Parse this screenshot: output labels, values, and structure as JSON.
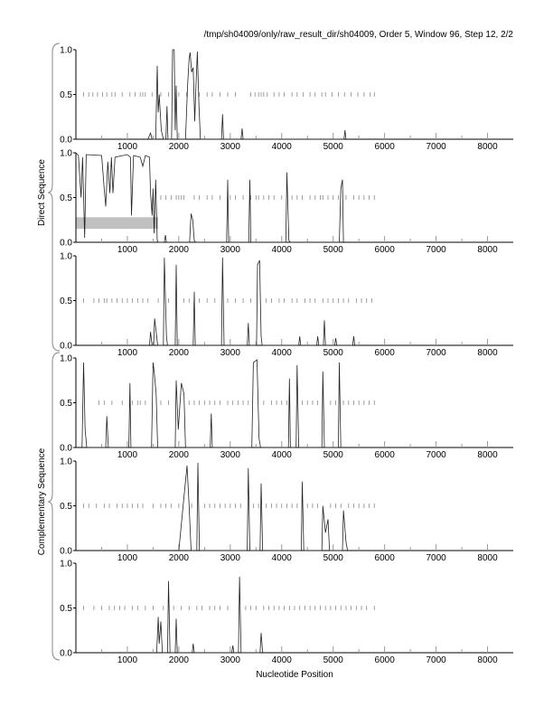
{
  "chart_data": {
    "type": "line",
    "title": "/tmp/sh04009/only/raw_result_dir/sh04009, Order 5, Window 96, Step 12, 2/2",
    "xlabel": "Nucleotide Position",
    "group_labels": [
      "Direct Sequence",
      "Complementary Sequence"
    ],
    "xlim": [
      0,
      8500
    ],
    "ylim": [
      0,
      1
    ],
    "x_ticks": [
      "1000",
      "2000",
      "3000",
      "4000",
      "5000",
      "6000",
      "7000",
      "8000"
    ],
    "y_ticks": [
      "0.0",
      "0.5",
      "1.0"
    ],
    "panels": [
      {
        "name": "direct-frame-1",
        "points": [
          [
            1400,
            0
          ],
          [
            1450,
            0.07
          ],
          [
            1480,
            0
          ],
          [
            1550,
            0
          ],
          [
            1580,
            0.82
          ],
          [
            1600,
            0.3
          ],
          [
            1620,
            0.5
          ],
          [
            1660,
            0.1
          ],
          [
            1700,
            0
          ],
          [
            1750,
            0
          ],
          [
            1770,
            0.37
          ],
          [
            1790,
            0
          ],
          [
            1860,
            0
          ],
          [
            1880,
            1.0
          ],
          [
            1910,
            1.0
          ],
          [
            1930,
            0.1
          ],
          [
            1950,
            0.6
          ],
          [
            1970,
            0
          ],
          [
            2130,
            0
          ],
          [
            2170,
            0.6
          ],
          [
            2200,
            0.9
          ],
          [
            2220,
            0.97
          ],
          [
            2250,
            0.75
          ],
          [
            2280,
            0.8
          ],
          [
            2310,
            0.2
          ],
          [
            2330,
            0.55
          ],
          [
            2360,
            0.98
          ],
          [
            2390,
            0.4
          ],
          [
            2420,
            0
          ],
          [
            2830,
            0
          ],
          [
            2850,
            0.28
          ],
          [
            2870,
            0
          ],
          [
            3210,
            0
          ],
          [
            3230,
            0.12
          ],
          [
            3250,
            0
          ],
          [
            5210,
            0
          ],
          [
            5230,
            0.1
          ],
          [
            5250,
            0
          ]
        ],
        "markers": [
          150,
          250,
          330,
          420,
          520,
          600,
          700,
          760,
          900,
          1050,
          1150,
          1250,
          1300,
          1350,
          1480,
          1650,
          1800,
          2000,
          2150,
          2400,
          2550,
          2650,
          2800,
          2950,
          3100,
          3400,
          3480,
          3550,
          3600,
          3650,
          3720,
          3850,
          3950,
          4050,
          4200,
          4300,
          4420,
          4550,
          4650,
          4780,
          4850,
          4980,
          5100,
          5220,
          5350,
          5480,
          5600,
          5720,
          5800
        ]
      },
      {
        "name": "direct-frame-2",
        "band": [
          0,
          1600,
          0.15,
          0.28
        ],
        "points": [
          [
            0,
            1.0
          ],
          [
            50,
            0.97
          ],
          [
            100,
            0.5
          ],
          [
            130,
            0.95
          ],
          [
            170,
            0.05
          ],
          [
            200,
            0.98
          ],
          [
            500,
            0.97
          ],
          [
            550,
            0.6
          ],
          [
            580,
            0.4
          ],
          [
            620,
            0.9
          ],
          [
            660,
            0.55
          ],
          [
            690,
            0.95
          ],
          [
            720,
            0.55
          ],
          [
            760,
            0.95
          ],
          [
            1000,
            0.98
          ],
          [
            1060,
            0.95
          ],
          [
            1080,
            0.3
          ],
          [
            1120,
            0.97
          ],
          [
            1250,
            0.95
          ],
          [
            1300,
            0.85
          ],
          [
            1350,
            0.97
          ],
          [
            1430,
            0.95
          ],
          [
            1450,
            0.55
          ],
          [
            1480,
            0.3
          ],
          [
            1500,
            0.6
          ],
          [
            1520,
            0.1
          ],
          [
            1550,
            0.7
          ],
          [
            1580,
            0.02
          ],
          [
            1600,
            0
          ],
          [
            1720,
            0
          ],
          [
            1740,
            0.08
          ],
          [
            1760,
            0
          ],
          [
            2210,
            0
          ],
          [
            2240,
            0.32
          ],
          [
            2270,
            0.25
          ],
          [
            2300,
            0.02
          ],
          [
            2330,
            0
          ],
          [
            2930,
            0
          ],
          [
            2950,
            0.7
          ],
          [
            2970,
            0
          ],
          [
            3360,
            0
          ],
          [
            3380,
            0.7
          ],
          [
            3400,
            0
          ],
          [
            4080,
            0
          ],
          [
            4100,
            0.78
          ],
          [
            4140,
            0.02
          ],
          [
            4170,
            0
          ],
          [
            5120,
            0
          ],
          [
            5150,
            0.6
          ],
          [
            5180,
            0.7
          ],
          [
            5200,
            0
          ]
        ],
        "markers": [
          1650,
          1750,
          1850,
          1950,
          2000,
          2050,
          2100,
          2300,
          2400,
          2550,
          2650,
          2800,
          3000,
          3100,
          3250,
          3400,
          3500,
          3550,
          3650,
          3750,
          3850,
          4000,
          4200,
          4300,
          4400,
          4550,
          4650,
          4750,
          4800,
          4900,
          5000,
          5100,
          5250,
          5400,
          5500,
          5600,
          5700,
          5800
        ]
      },
      {
        "name": "direct-frame-3",
        "points": [
          [
            1430,
            0
          ],
          [
            1450,
            0.15
          ],
          [
            1480,
            0
          ],
          [
            1510,
            0
          ],
          [
            1530,
            0.3
          ],
          [
            1560,
            0.15
          ],
          [
            1590,
            0
          ],
          [
            1700,
            0
          ],
          [
            1720,
            0.98
          ],
          [
            1760,
            0.1
          ],
          [
            1780,
            0
          ],
          [
            1930,
            0
          ],
          [
            1950,
            0.9
          ],
          [
            1970,
            0
          ],
          [
            2280,
            0
          ],
          [
            2300,
            0.6
          ],
          [
            2320,
            0
          ],
          [
            2830,
            0
          ],
          [
            2850,
            0.98
          ],
          [
            2880,
            0
          ],
          [
            3330,
            0
          ],
          [
            3350,
            0.25
          ],
          [
            3370,
            0
          ],
          [
            3510,
            0
          ],
          [
            3530,
            0.9
          ],
          [
            3570,
            0.95
          ],
          [
            3600,
            0.1
          ],
          [
            3620,
            0
          ],
          [
            4330,
            0
          ],
          [
            4350,
            0.1
          ],
          [
            4370,
            0
          ],
          [
            4680,
            0
          ],
          [
            4700,
            0.1
          ],
          [
            4720,
            0
          ],
          [
            4810,
            0
          ],
          [
            4830,
            0.28
          ],
          [
            4850,
            0
          ],
          [
            5030,
            0
          ],
          [
            5050,
            0.08
          ],
          [
            5070,
            0
          ],
          [
            5380,
            0
          ],
          [
            5400,
            0.1
          ],
          [
            5420,
            0
          ]
        ],
        "markers": [
          150,
          350,
          450,
          550,
          600,
          700,
          800,
          900,
          1000,
          1100,
          1200,
          1300,
          1400,
          1600,
          1800,
          2100,
          2200,
          2400,
          2550,
          2700,
          2950,
          3100,
          3250,
          3400,
          3700,
          3800,
          3950,
          4050,
          4200,
          4300,
          4450,
          4550,
          4650,
          4800,
          4900,
          5000,
          5100,
          5200,
          5300,
          5450,
          5550,
          5650,
          5750
        ]
      },
      {
        "name": "complementary-frame-1",
        "points": [
          [
            120,
            0
          ],
          [
            150,
            0.95
          ],
          [
            180,
            0.2
          ],
          [
            210,
            0
          ],
          [
            580,
            0
          ],
          [
            600,
            0.35
          ],
          [
            630,
            0
          ],
          [
            1030,
            0
          ],
          [
            1050,
            0.72
          ],
          [
            1070,
            0
          ],
          [
            1470,
            0
          ],
          [
            1500,
            0.95
          ],
          [
            1520,
            0.85
          ],
          [
            1560,
            0.6
          ],
          [
            1590,
            0
          ],
          [
            1930,
            0
          ],
          [
            1950,
            0.75
          ],
          [
            1990,
            0.2
          ],
          [
            2050,
            0.72
          ],
          [
            2100,
            0.6
          ],
          [
            2130,
            0
          ],
          [
            2610,
            0
          ],
          [
            2630,
            0.38
          ],
          [
            2650,
            0
          ],
          [
            3420,
            0
          ],
          [
            3450,
            0.95
          ],
          [
            3520,
            0.98
          ],
          [
            3560,
            0.1
          ],
          [
            3590,
            0
          ],
          [
            4130,
            0
          ],
          [
            4150,
            0.77
          ],
          [
            4170,
            0
          ],
          [
            4280,
            0
          ],
          [
            4300,
            0.92
          ],
          [
            4330,
            0
          ],
          [
            4780,
            0
          ],
          [
            4800,
            0.85
          ],
          [
            4830,
            0
          ],
          [
            5100,
            0
          ],
          [
            5120,
            0.95
          ],
          [
            5150,
            0
          ]
        ],
        "markers": [
          450,
          550,
          700,
          900,
          1100,
          1200,
          1250,
          1350,
          1650,
          1800,
          2200,
          2300,
          2400,
          2500,
          2600,
          2700,
          2800,
          2950,
          3050,
          3150,
          3250,
          3350,
          3650,
          3800,
          3900,
          4000,
          4100,
          4400,
          4500,
          4600,
          4700,
          4950,
          5050,
          5200,
          5300,
          5400,
          5500,
          5600,
          5700,
          5800
        ]
      },
      {
        "name": "complementary-frame-2",
        "points": [
          [
            2000,
            0
          ],
          [
            2100,
            0.6
          ],
          [
            2160,
            0.95
          ],
          [
            2200,
            0.5
          ],
          [
            2240,
            0
          ],
          [
            2350,
            0
          ],
          [
            2370,
            0.98
          ],
          [
            2400,
            0
          ],
          [
            3330,
            0
          ],
          [
            3350,
            0.92
          ],
          [
            3380,
            0
          ],
          [
            3580,
            0
          ],
          [
            3600,
            0.75
          ],
          [
            3630,
            0
          ],
          [
            4380,
            0
          ],
          [
            4400,
            0.77
          ],
          [
            4430,
            0
          ],
          [
            4780,
            0
          ],
          [
            4800,
            0.5
          ],
          [
            4850,
            0.2
          ],
          [
            4900,
            0.35
          ],
          [
            4930,
            0
          ],
          [
            5180,
            0
          ],
          [
            5200,
            0.45
          ],
          [
            5250,
            0.1
          ],
          [
            5280,
            0
          ]
        ],
        "markers": [
          150,
          250,
          400,
          550,
          650,
          800,
          900,
          1000,
          1100,
          1200,
          1300,
          1500,
          1650,
          1750,
          1850,
          2000,
          2250,
          2500,
          2600,
          2700,
          2800,
          2900,
          3000,
          3100,
          3200,
          3450,
          3550,
          3700,
          3800,
          3900,
          4000,
          4100,
          4200,
          4300,
          4500,
          4600,
          4700,
          4950,
          5050,
          5150,
          5300,
          5400,
          5500,
          5600,
          5700,
          5800
        ]
      },
      {
        "name": "complementary-frame-3",
        "points": [
          [
            1570,
            0
          ],
          [
            1600,
            0.4
          ],
          [
            1620,
            0.1
          ],
          [
            1650,
            0.35
          ],
          [
            1680,
            0
          ],
          [
            1780,
            0
          ],
          [
            1800,
            0.8
          ],
          [
            1830,
            0
          ],
          [
            1930,
            0
          ],
          [
            1950,
            0.38
          ],
          [
            1970,
            0
          ],
          [
            2260,
            0
          ],
          [
            2280,
            0.1
          ],
          [
            2300,
            0
          ],
          [
            3030,
            0
          ],
          [
            3050,
            0.08
          ],
          [
            3070,
            0
          ],
          [
            3160,
            0
          ],
          [
            3180,
            0.85
          ],
          [
            3210,
            0
          ],
          [
            3580,
            0
          ],
          [
            3600,
            0.22
          ],
          [
            3630,
            0
          ]
        ],
        "markers": [
          150,
          350,
          500,
          650,
          750,
          850,
          950,
          1100,
          1200,
          1350,
          1500,
          1700,
          1900,
          2050,
          2200,
          2350,
          2450,
          2600,
          2700,
          2800,
          2950,
          3300,
          3400,
          3500,
          3650,
          3750,
          3850,
          3950,
          4050,
          4150,
          4250,
          4350,
          4450,
          4550,
          4650,
          4750,
          4850,
          4950,
          5050,
          5150,
          5250,
          5350,
          5450,
          5550,
          5650,
          5800
        ]
      }
    ]
  }
}
